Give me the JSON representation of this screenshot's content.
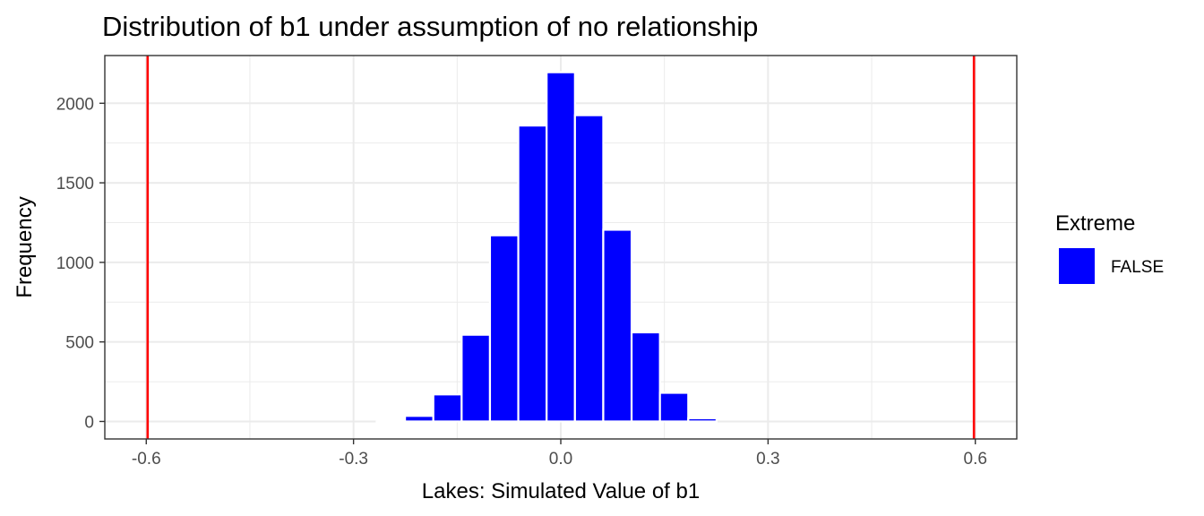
{
  "chart_data": {
    "type": "bar",
    "title": "Distribution of b1 under assumption of no relationship",
    "xlabel": "Lakes: Simulated Value of b1",
    "ylabel": "Frequency",
    "xlim": [
      -0.66,
      0.66
    ],
    "ylim": [
      -110,
      2300
    ],
    "x_ticks": [
      -0.6,
      -0.3,
      0.0,
      0.3,
      0.6
    ],
    "x_tick_labels": [
      "-0.6",
      "-0.3",
      "0.0",
      "0.3",
      "0.6"
    ],
    "y_ticks": [
      0,
      500,
      1000,
      1500,
      2000
    ],
    "y_tick_labels": [
      "0",
      "500",
      "1000",
      "1500",
      "2000"
    ],
    "grid": true,
    "bin_width": 0.041,
    "bins": [
      {
        "x": -0.246,
        "y": 5,
        "extreme": "FALSE"
      },
      {
        "x": -0.205,
        "y": 35,
        "extreme": "FALSE"
      },
      {
        "x": -0.164,
        "y": 170,
        "extreme": "FALSE"
      },
      {
        "x": -0.123,
        "y": 545,
        "extreme": "FALSE"
      },
      {
        "x": -0.082,
        "y": 1170,
        "extreme": "FALSE"
      },
      {
        "x": -0.041,
        "y": 1860,
        "extreme": "FALSE"
      },
      {
        "x": 0.0,
        "y": 2195,
        "extreme": "FALSE"
      },
      {
        "x": 0.041,
        "y": 1925,
        "extreme": "FALSE"
      },
      {
        "x": 0.082,
        "y": 1205,
        "extreme": "FALSE"
      },
      {
        "x": 0.123,
        "y": 560,
        "extreme": "FALSE"
      },
      {
        "x": 0.164,
        "y": 180,
        "extreme": "FALSE"
      },
      {
        "x": 0.205,
        "y": 20,
        "extreme": "FALSE"
      }
    ],
    "vlines": [
      {
        "x": -0.598,
        "color": "#ff0000"
      },
      {
        "x": 0.598,
        "color": "#ff0000"
      }
    ],
    "legend": {
      "title": "Extreme",
      "position": "right",
      "entries": [
        {
          "label": "FALSE",
          "color": "#0000ff"
        }
      ]
    },
    "bar_color": "#0000ff",
    "bar_outline": "#ffffff"
  }
}
